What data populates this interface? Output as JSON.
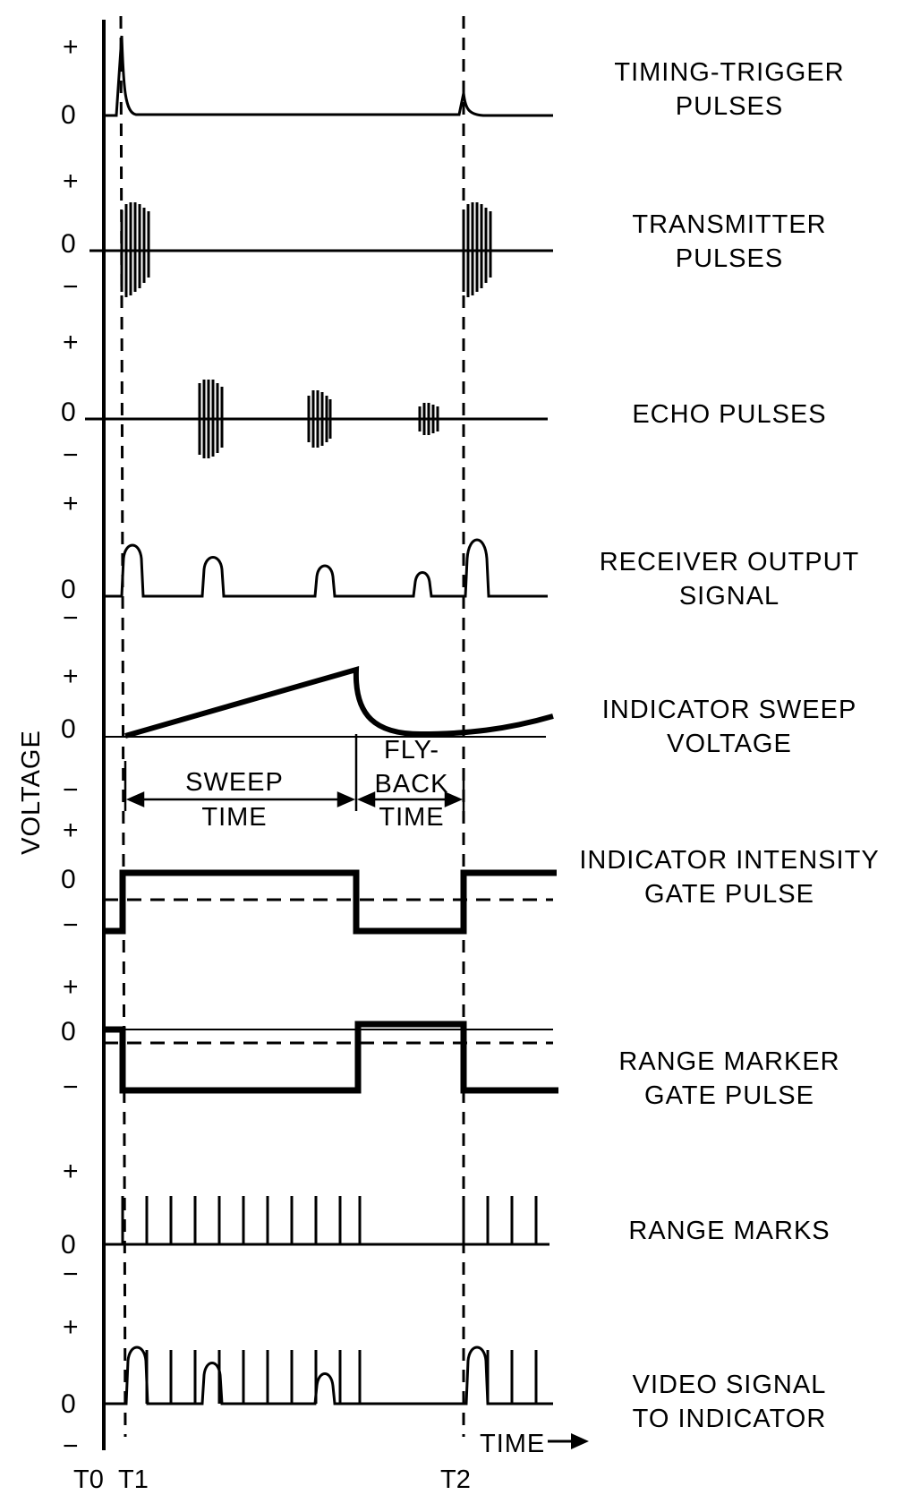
{
  "y_axis_label": "VOLTAGE",
  "x_axis_label": "TIME",
  "time_marks": [
    "T0",
    "T1",
    "T2"
  ],
  "traces": [
    {
      "label_lines": [
        "TIMING-TRIGGER",
        "PULSES"
      ],
      "levels": [
        "+",
        "0"
      ]
    },
    {
      "label_lines": [
        "TRANSMITTER",
        "PULSES"
      ],
      "levels": [
        "+",
        "0",
        "−"
      ]
    },
    {
      "label_lines": [
        "ECHO  PULSES"
      ],
      "levels": [
        "+",
        "0",
        "−"
      ]
    },
    {
      "label_lines": [
        "RECEIVER  OUTPUT",
        "SIGNAL"
      ],
      "levels": [
        "+",
        "0",
        "−"
      ]
    },
    {
      "label_lines": [
        "INDICATOR  SWEEP",
        "VOLTAGE"
      ],
      "levels": [
        "+",
        "0",
        "−"
      ]
    },
    {
      "label_lines": [
        "INDICATOR  INTENSITY",
        "GATE  PULSE"
      ],
      "levels": [
        "+",
        "0",
        "−"
      ]
    },
    {
      "label_lines": [
        "RANGE  MARKER",
        "GATE  PULSE"
      ],
      "levels": [
        "+",
        "0",
        "−"
      ]
    },
    {
      "label_lines": [
        "RANGE  MARKS"
      ],
      "levels": [
        "+",
        "0",
        "−"
      ]
    },
    {
      "label_lines": [
        "VIDEO  SIGNAL",
        "TO  INDICATOR"
      ],
      "levels": [
        "+",
        "0",
        "−"
      ]
    }
  ],
  "annotations": {
    "sweep_time": [
      "SWEEP",
      "TIME"
    ],
    "flyback_time": [
      "FLY-",
      "BACK",
      "TIME"
    ]
  },
  "colors": {
    "ink": "#000000",
    "background": "#ffffff"
  }
}
